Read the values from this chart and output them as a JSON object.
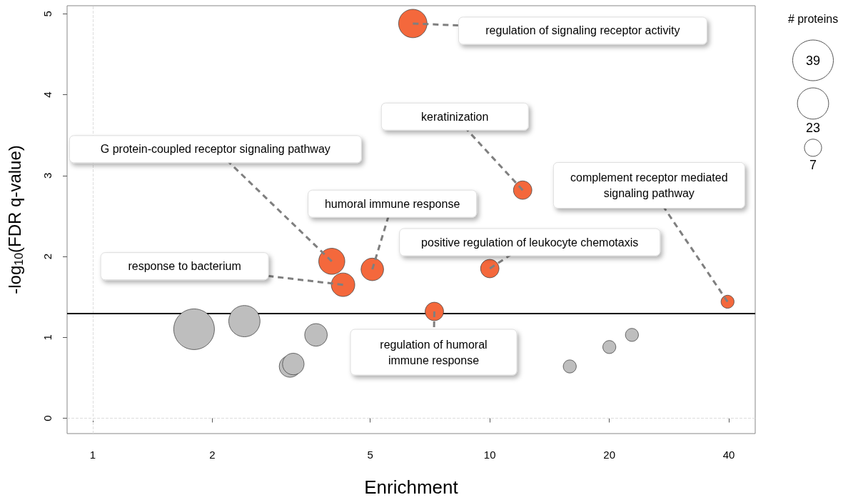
{
  "chart_data": {
    "type": "bubble",
    "xlabel": "Enrichment",
    "ylabel": "-log$_{10}$(FDR q-value)",
    "legend_title": "# proteins",
    "log": "x",
    "xlim": [
      0.862,
      46.6
    ],
    "xticks": [
      1,
      2,
      5,
      10,
      20,
      40
    ],
    "ylim": [
      -0.19,
      5.1
    ],
    "yticks": [
      0,
      1,
      2,
      3,
      4,
      5
    ],
    "grid": false,
    "marker": "circle",
    "size_legend": [
      39,
      23,
      7
    ],
    "series": [
      {
        "color": "#f4683c",
        "x": [
          6.4,
          12.1,
          4.0,
          4.27,
          5.06,
          10.0,
          39.7,
          7.25
        ],
        "values": [
          4.88,
          2.82,
          1.94,
          1.65,
          1.84,
          1.85,
          1.44,
          1.32
        ],
        "sizes": [
          19,
          8,
          16,
          13,
          12,
          8,
          4,
          8
        ]
      },
      {
        "color": "#bebebe",
        "x": [
          1.8,
          2.41,
          3.65,
          3.14,
          3.2,
          15.9,
          20.0,
          22.8
        ],
        "values": [
          1.1,
          1.2,
          1.03,
          0.64,
          0.67,
          0.64,
          0.88,
          1.03
        ],
        "sizes": [
          39,
          23,
          12,
          11,
          11,
          4,
          4,
          4
        ]
      }
    ],
    "ref_lines": [
      {
        "axis": "y",
        "value": 1.3,
        "color": "#000000",
        "line_style": "solid"
      },
      {
        "axis": "x",
        "value": 1,
        "color": "#dddddd",
        "line_style": "dashed"
      },
      {
        "axis": "y",
        "value": 0,
        "color": "#dddddd",
        "line_style": "dashed"
      }
    ],
    "annotations": [
      {
        "text": "regulation of signaling receptor activity",
        "x": 6.4,
        "y": 4.88
      },
      {
        "text": "keratinization",
        "x": 12.1,
        "y": 2.82
      },
      {
        "text": "G protein-coupled receptor signaling pathway",
        "x": 4.0,
        "y": 1.94
      },
      {
        "text": "humoral immune response",
        "x": 5.06,
        "y": 1.84
      },
      {
        "text": "complement receptor mediated signaling pathway",
        "x": 39.7,
        "y": 1.44
      },
      {
        "text": "positive regulation of leukocyte chemotaxis",
        "x": 10.0,
        "y": 1.85
      },
      {
        "text": "response to bacterium",
        "x": 4.27,
        "y": 1.65
      },
      {
        "text": "regulation of humoral immune response",
        "x": 7.25,
        "y": 1.32
      }
    ]
  }
}
